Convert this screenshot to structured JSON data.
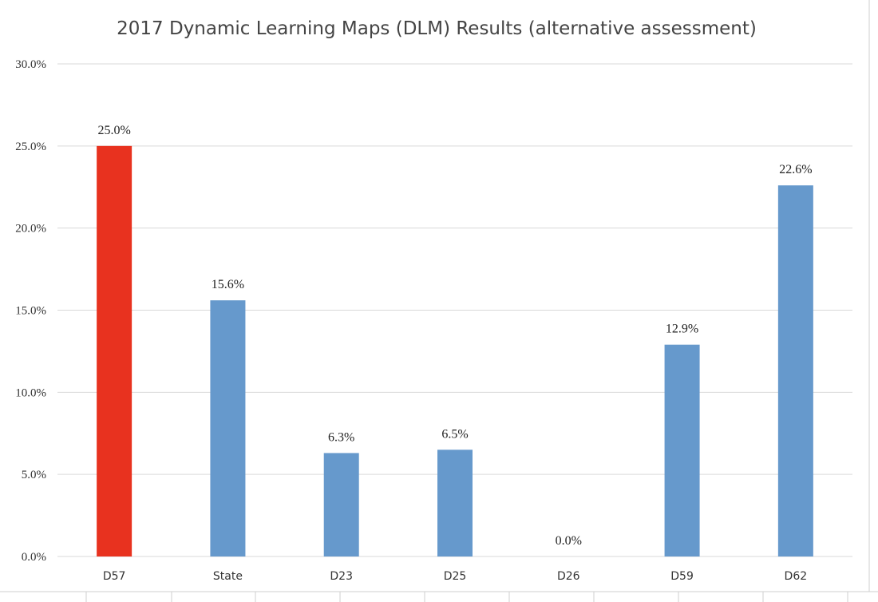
{
  "chart_data": {
    "type": "bar",
    "title": "2017 Dynamic Learning Maps (DLM) Results (alternative assessment)",
    "xlabel": "",
    "ylabel": "",
    "categories": [
      "D57",
      "State",
      "D23",
      "D25",
      "D26",
      "D59",
      "D62"
    ],
    "values": [
      25.0,
      15.6,
      6.3,
      6.5,
      0.0,
      12.9,
      22.6
    ],
    "data_labels": [
      "25.0%",
      "15.6%",
      "6.3%",
      "6.5%",
      "0.0%",
      "12.9%",
      "22.6%"
    ],
    "ylim": [
      0,
      30
    ],
    "y_ticks": [
      0,
      5,
      10,
      15,
      20,
      25,
      30
    ],
    "y_tick_labels": [
      "0.0%",
      "5.0%",
      "10.0%",
      "15.0%",
      "20.0%",
      "25.0%",
      "30.0%"
    ],
    "grid": true,
    "legend": "none",
    "colors": {
      "highlight": "#e8321f",
      "default": "#6699cc",
      "gridline": "#d9d9d9"
    },
    "highlight_category": "D57"
  }
}
